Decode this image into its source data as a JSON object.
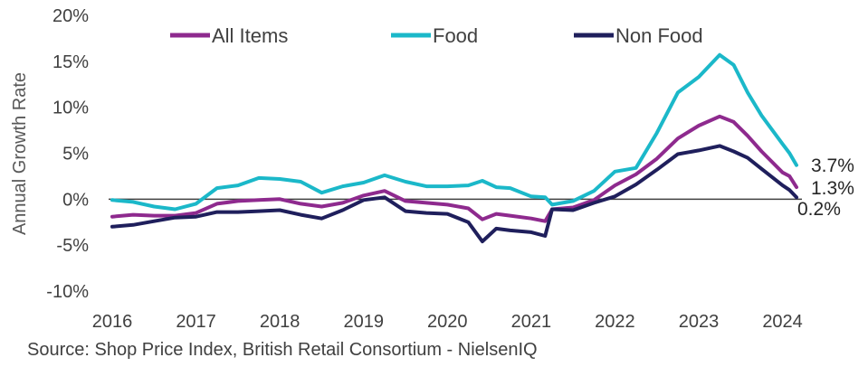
{
  "chart_data": {
    "type": "line",
    "ylabel": "Annual Growth Rate",
    "xlabel": "",
    "ylim": [
      -10,
      20
    ],
    "y_ticks": [
      -10,
      -5,
      0,
      5,
      10,
      15,
      20
    ],
    "y_tick_labels": [
      "-10%",
      "-5%",
      "0%",
      "5%",
      "10%",
      "15%",
      "20%"
    ],
    "x_tick_labels": [
      "2016",
      "2017",
      "2018",
      "2019",
      "2020",
      "2021",
      "2022",
      "2023",
      "2024"
    ],
    "x_start": "2016-01",
    "x_end": "2024-03",
    "legend_position": "top",
    "grid": false,
    "zero_line": true,
    "series": [
      {
        "name": "All Items",
        "color": "#8E2A8E",
        "points": [
          [
            "2016-01",
            -1.9
          ],
          [
            "2016-04",
            -1.7
          ],
          [
            "2016-07",
            -1.8
          ],
          [
            "2016-10",
            -1.8
          ],
          [
            "2017-01",
            -1.5
          ],
          [
            "2017-04",
            -0.5
          ],
          [
            "2017-07",
            -0.2
          ],
          [
            "2017-10",
            -0.1
          ],
          [
            "2018-01",
            0.0
          ],
          [
            "2018-04",
            -0.5
          ],
          [
            "2018-07",
            -0.8
          ],
          [
            "2018-10",
            -0.4
          ],
          [
            "2019-01",
            0.4
          ],
          [
            "2019-04",
            0.9
          ],
          [
            "2019-07",
            -0.2
          ],
          [
            "2019-10",
            -0.4
          ],
          [
            "2020-01",
            -0.6
          ],
          [
            "2020-04",
            -1.0
          ],
          [
            "2020-06",
            -2.2
          ],
          [
            "2020-08",
            -1.6
          ],
          [
            "2020-10",
            -1.8
          ],
          [
            "2021-01",
            -2.1
          ],
          [
            "2021-03",
            -2.4
          ],
          [
            "2021-04",
            -1.1
          ],
          [
            "2021-07",
            -0.9
          ],
          [
            "2021-10",
            -0.1
          ],
          [
            "2022-01",
            1.5
          ],
          [
            "2022-04",
            2.7
          ],
          [
            "2022-07",
            4.4
          ],
          [
            "2022-10",
            6.6
          ],
          [
            "2023-01",
            8.0
          ],
          [
            "2023-04",
            9.0
          ],
          [
            "2023-06",
            8.4
          ],
          [
            "2023-08",
            6.9
          ],
          [
            "2023-10",
            5.2
          ],
          [
            "2024-01",
            2.9
          ],
          [
            "2024-02",
            2.5
          ],
          [
            "2024-03",
            1.3
          ]
        ],
        "end_label": "1.3%"
      },
      {
        "name": "Food",
        "color": "#1BB8C9",
        "points": [
          [
            "2016-01",
            -0.1
          ],
          [
            "2016-04",
            -0.3
          ],
          [
            "2016-07",
            -0.8
          ],
          [
            "2016-10",
            -1.1
          ],
          [
            "2017-01",
            -0.5
          ],
          [
            "2017-04",
            1.2
          ],
          [
            "2017-07",
            1.5
          ],
          [
            "2017-10",
            2.3
          ],
          [
            "2018-01",
            2.2
          ],
          [
            "2018-04",
            1.9
          ],
          [
            "2018-07",
            0.7
          ],
          [
            "2018-10",
            1.4
          ],
          [
            "2019-01",
            1.8
          ],
          [
            "2019-04",
            2.6
          ],
          [
            "2019-07",
            1.9
          ],
          [
            "2019-10",
            1.4
          ],
          [
            "2020-01",
            1.4
          ],
          [
            "2020-04",
            1.5
          ],
          [
            "2020-06",
            2.0
          ],
          [
            "2020-08",
            1.3
          ],
          [
            "2020-10",
            1.2
          ],
          [
            "2021-01",
            0.3
          ],
          [
            "2021-03",
            0.2
          ],
          [
            "2021-04",
            -0.6
          ],
          [
            "2021-07",
            -0.2
          ],
          [
            "2021-10",
            0.9
          ],
          [
            "2022-01",
            3.0
          ],
          [
            "2022-04",
            3.4
          ],
          [
            "2022-07",
            7.2
          ],
          [
            "2022-10",
            11.6
          ],
          [
            "2023-01",
            13.3
          ],
          [
            "2023-04",
            15.7
          ],
          [
            "2023-06",
            14.6
          ],
          [
            "2023-08",
            11.6
          ],
          [
            "2023-10",
            9.1
          ],
          [
            "2024-01",
            6.0
          ],
          [
            "2024-02",
            5.0
          ],
          [
            "2024-03",
            3.7
          ]
        ],
        "end_label": "3.7%"
      },
      {
        "name": "Non Food",
        "color": "#1F1F5C",
        "points": [
          [
            "2016-01",
            -3.0
          ],
          [
            "2016-04",
            -2.8
          ],
          [
            "2016-07",
            -2.4
          ],
          [
            "2016-10",
            -2.0
          ],
          [
            "2017-01",
            -1.9
          ],
          [
            "2017-04",
            -1.4
          ],
          [
            "2017-07",
            -1.4
          ],
          [
            "2017-10",
            -1.3
          ],
          [
            "2018-01",
            -1.2
          ],
          [
            "2018-04",
            -1.7
          ],
          [
            "2018-07",
            -2.1
          ],
          [
            "2018-10",
            -1.2
          ],
          [
            "2019-01",
            -0.1
          ],
          [
            "2019-04",
            0.2
          ],
          [
            "2019-07",
            -1.3
          ],
          [
            "2019-10",
            -1.5
          ],
          [
            "2020-01",
            -1.6
          ],
          [
            "2020-04",
            -2.5
          ],
          [
            "2020-06",
            -4.6
          ],
          [
            "2020-08",
            -3.2
          ],
          [
            "2020-10",
            -3.4
          ],
          [
            "2021-01",
            -3.6
          ],
          [
            "2021-03",
            -4.0
          ],
          [
            "2021-04",
            -1.1
          ],
          [
            "2021-07",
            -1.2
          ],
          [
            "2021-10",
            -0.4
          ],
          [
            "2022-01",
            0.3
          ],
          [
            "2022-04",
            1.6
          ],
          [
            "2022-07",
            3.2
          ],
          [
            "2022-10",
            4.9
          ],
          [
            "2023-01",
            5.3
          ],
          [
            "2023-04",
            5.8
          ],
          [
            "2023-06",
            5.2
          ],
          [
            "2023-08",
            4.5
          ],
          [
            "2023-10",
            3.3
          ],
          [
            "2024-01",
            1.5
          ],
          [
            "2024-02",
            1.0
          ],
          [
            "2024-03",
            0.2
          ]
        ],
        "end_label": "0.2%"
      }
    ]
  },
  "source": "Source: Shop Price Index, British Retail Consortium - NielsenIQ"
}
